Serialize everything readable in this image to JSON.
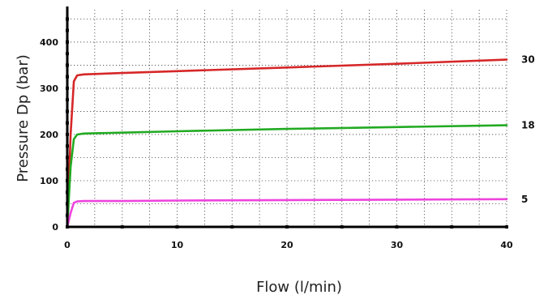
{
  "chart_data": {
    "type": "line",
    "title": "",
    "xlabel": "Flow (l/min)",
    "ylabel": "Pressure Dp (bar)",
    "xlim": [
      0,
      40
    ],
    "ylim": [
      0,
      470
    ],
    "x_ticks": [
      0,
      10,
      20,
      30,
      40
    ],
    "y_ticks": [
      0,
      100,
      200,
      300,
      400
    ],
    "x_tick_labels": [
      "0",
      "10",
      "20",
      "30",
      "40"
    ],
    "y_tick_labels": [
      "0",
      "100",
      "200",
      "300",
      "400"
    ],
    "grid": true,
    "legend": "none",
    "series": [
      {
        "name": "30",
        "color": "#d62728",
        "x": [
          0,
          0.3,
          0.6,
          0.9,
          1.5,
          5,
          10,
          20,
          30,
          40
        ],
        "y": [
          0,
          200,
          315,
          328,
          330,
          333,
          337,
          345,
          353,
          362
        ]
      },
      {
        "name": "18",
        "color": "#22aa22",
        "x": [
          0,
          0.3,
          0.6,
          0.9,
          1.5,
          5,
          10,
          20,
          30,
          40
        ],
        "y": [
          0,
          130,
          190,
          200,
          202,
          204,
          207,
          212,
          216,
          220
        ]
      },
      {
        "name": "5",
        "color": "#ee44dd",
        "x": [
          0,
          0.3,
          0.6,
          0.9,
          1.5,
          5,
          10,
          20,
          30,
          40
        ],
        "y": [
          0,
          30,
          52,
          55,
          56,
          56,
          57,
          58,
          59,
          60
        ]
      }
    ]
  }
}
